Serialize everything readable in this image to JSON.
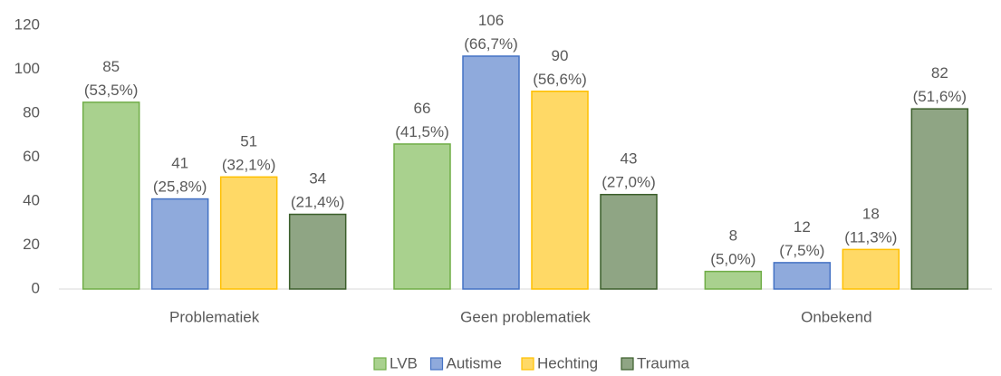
{
  "chart_data": {
    "type": "bar",
    "categories": [
      "Problematiek",
      "Geen problematiek",
      "Onbekend"
    ],
    "series": [
      {
        "name": "LVB",
        "color": "#a9d18e",
        "edge": "#70ad47",
        "values": [
          85,
          66,
          8
        ],
        "value_labels": [
          "85 (53,5%)",
          "66 (41,5%)",
          "8 (5,0%)"
        ]
      },
      {
        "name": "Autisme",
        "color": "#8faadc",
        "edge": "#4472c4",
        "values": [
          41,
          106,
          12
        ],
        "value_labels": [
          "41 (25,8%)",
          "106 (66,7%)",
          "12 (7,5%)"
        ]
      },
      {
        "name": "Hechting",
        "color": "#ffd966",
        "edge": "#ffc000",
        "values": [
          51,
          90,
          18
        ],
        "value_labels": [
          "51 (32,1%)",
          "90 (56,6%)",
          "18 (11,3%)"
        ]
      },
      {
        "name": "Trauma",
        "color": "#8fa584",
        "edge": "#3b5e2b",
        "values": [
          34,
          43,
          82
        ],
        "value_labels": [
          "34 (21,4%)",
          "43 (27,0%)",
          "82 (51,6%)"
        ]
      }
    ],
    "ylim": [
      0,
      120
    ],
    "yticks": [
      0,
      20,
      40,
      60,
      80,
      100,
      120
    ],
    "grid": false,
    "legend": "bottom"
  }
}
